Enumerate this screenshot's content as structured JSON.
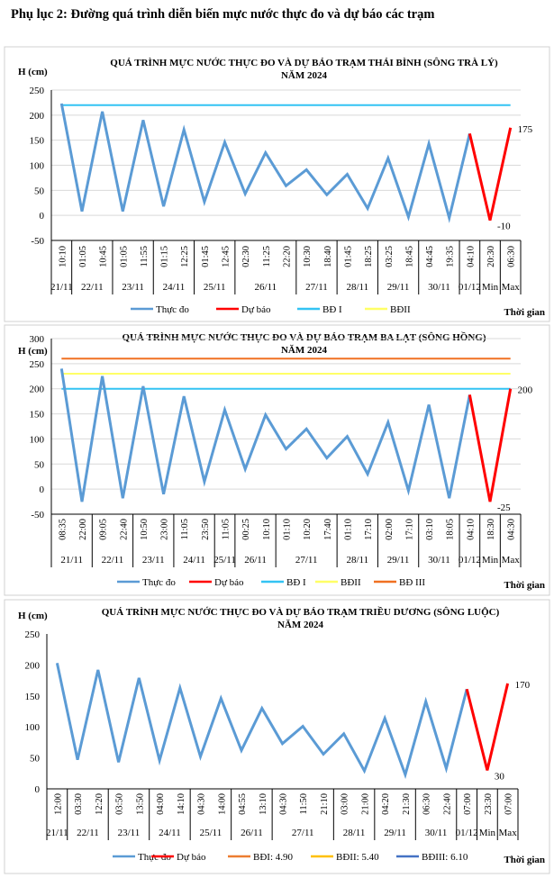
{
  "heading": "Phụ lục 2: Đường quá trình diễn biến mực nước thực đo và dự báo các trạm",
  "chart_data": [
    {
      "type": "line",
      "title": [
        "QUÁ TRÌNH MỰC NƯỚC THỰC ĐO VÀ DỰ BÁO TRẠM THÁI BÌNH (SÔNG TRÀ LÝ)",
        "NĂM 2024"
      ],
      "ylabel": "H (cm)",
      "xlabel": "Thời gian",
      "ylim": [
        -50,
        250
      ],
      "yticks": [
        -50,
        0,
        50,
        100,
        150,
        200,
        250
      ],
      "grid": true,
      "legend_position": "bottom",
      "times": [
        "10:10",
        "01:05",
        "10:45",
        "01:05",
        "11:55",
        "01:15",
        "12:25",
        "01:45",
        "12:45",
        "02:30",
        "11:25",
        "22:20",
        "10:30",
        "18:40",
        "01:45",
        "18:25",
        "03:25",
        "18:45",
        "04:45",
        "19:35",
        "04:10",
        "20:30",
        "06:30"
      ],
      "date_groups": [
        {
          "label": "21/11",
          "span": 1
        },
        {
          "label": "22/11",
          "span": 2
        },
        {
          "label": "23/11",
          "span": 2
        },
        {
          "label": "24/11",
          "span": 2
        },
        {
          "label": "25/11",
          "span": 2
        },
        {
          "label": "26/11",
          "span": 3
        },
        {
          "label": "27/11",
          "span": 2
        },
        {
          "label": "28/11",
          "span": 2
        },
        {
          "label": "29/11",
          "span": 2
        },
        {
          "label": "30/11",
          "span": 2
        },
        {
          "label": "01/12",
          "span": 1
        },
        {
          "label": "Min",
          "span": 1
        },
        {
          "label": "Max",
          "span": 1
        }
      ],
      "series": [
        {
          "name": "Thực đo",
          "color": "#5b9bd5",
          "start_index": 0,
          "values": [
            223,
            8,
            207,
            8,
            190,
            18,
            171,
            27,
            146,
            43,
            125,
            59,
            91,
            41,
            82,
            14,
            114,
            -3,
            143,
            -5,
            163
          ]
        },
        {
          "name": "Dự báo",
          "color": "#ff0000",
          "start_index": 20,
          "values": [
            163,
            -10,
            175
          ]
        }
      ],
      "thresholds": [
        {
          "name": "BĐ I",
          "color": "#33c3f3",
          "value": 220
        },
        {
          "name": "BĐII",
          "color": "#ffff66",
          "value": null
        }
      ],
      "data_labels": {
        "max": "175",
        "min": "-10"
      }
    },
    {
      "type": "line",
      "title": [
        "QUÁ TRÌNH MỰC NƯỚC THỰC ĐO VÀ DỰ BÁO TRẠM BA LẠT (SÔNG HỒNG)",
        "NĂM 2024"
      ],
      "ylabel": "H (cm)",
      "xlabel": "Thời gian",
      "ylim": [
        -50,
        300
      ],
      "yticks": [
        -50,
        0,
        50,
        100,
        150,
        200,
        250,
        300
      ],
      "grid": true,
      "legend_position": "bottom",
      "times": [
        "08:35",
        "22:00",
        "09:05",
        "22:40",
        "10:50",
        "23:00",
        "11:05",
        "23:50",
        "11:05",
        "00:25",
        "10:10",
        "01:10",
        "10:20",
        "17:40",
        "01:10",
        "17:10",
        "02:00",
        "17:10",
        "03:10",
        "18:05",
        "04:10",
        "18:30",
        "04:30"
      ],
      "date_groups": [
        {
          "label": "21/11",
          "span": 2
        },
        {
          "label": "22/11",
          "span": 2
        },
        {
          "label": "23/11",
          "span": 2
        },
        {
          "label": "24/11",
          "span": 2
        },
        {
          "label": "25/11",
          "span": 1
        },
        {
          "label": "26/11",
          "span": 2
        },
        {
          "label": "27/11",
          "span": 3
        },
        {
          "label": "28/11",
          "span": 2
        },
        {
          "label": "29/11",
          "span": 2
        },
        {
          "label": "30/11",
          "span": 2
        },
        {
          "label": "01/12",
          "span": 1
        },
        {
          "label": "Min",
          "span": 1
        },
        {
          "label": "Max",
          "span": 1
        }
      ],
      "series": [
        {
          "name": "Thực đo",
          "color": "#5b9bd5",
          "start_index": 0,
          "values": [
            240,
            -25,
            225,
            -18,
            205,
            -10,
            185,
            15,
            158,
            40,
            148,
            80,
            120,
            62,
            105,
            30,
            133,
            -3,
            168,
            -18,
            188
          ]
        },
        {
          "name": "Dự báo",
          "color": "#ff0000",
          "start_index": 20,
          "values": [
            188,
            -25,
            200
          ]
        }
      ],
      "thresholds": [
        {
          "name": "BĐ I",
          "color": "#33c3f3",
          "value": 200
        },
        {
          "name": "BĐII",
          "color": "#ffff66",
          "value": 230
        },
        {
          "name": "BĐ III",
          "color": "#f07022",
          "value": 260
        }
      ],
      "data_labels": {
        "max": "200",
        "min": "-25"
      }
    },
    {
      "type": "line",
      "title": [
        "QUÁ TRÌNH MỰC NƯỚC THỰC ĐO VÀ DỰ BÁO TRẠM TRIỀU DƯƠNG (SÔNG LUỘC)",
        "NĂM 2024"
      ],
      "ylabel": "H (cm)",
      "xlabel": "Thời gian",
      "ylim": [
        0,
        250
      ],
      "yticks": [
        0,
        50,
        100,
        150,
        200,
        250
      ],
      "grid": false,
      "legend_position": "bottom",
      "times": [
        "12:00",
        "03:30",
        "12:20",
        "03:50",
        "13:50",
        "04:00",
        "14:10",
        "04:30",
        "14:00",
        "04:55",
        "13:10",
        "04:30",
        "11:50",
        "21:10",
        "03:00",
        "21:00",
        "04:20",
        "21:30",
        "06:30",
        "22:40",
        "07:00",
        "23:30",
        "07:00"
      ],
      "date_groups": [
        {
          "label": "21/11",
          "span": 1
        },
        {
          "label": "22/11",
          "span": 2
        },
        {
          "label": "23/11",
          "span": 2
        },
        {
          "label": "24/11",
          "span": 2
        },
        {
          "label": "25/11",
          "span": 2
        },
        {
          "label": "26/11",
          "span": 2
        },
        {
          "label": "27/11",
          "span": 3
        },
        {
          "label": "28/11",
          "span": 2
        },
        {
          "label": "29/11",
          "span": 2
        },
        {
          "label": "30/11",
          "span": 2
        },
        {
          "label": "01/12",
          "span": 1
        },
        {
          "label": "Min",
          "span": 1
        },
        {
          "label": "Max",
          "span": 1
        }
      ],
      "series": [
        {
          "name": "Thực đo",
          "color": "#5b9bd5",
          "start_index": 0,
          "values": [
            203,
            47,
            192,
            43,
            179,
            46,
            163,
            52,
            146,
            62,
            130,
            73,
            101,
            56,
            89,
            29,
            114,
            23,
            141,
            33,
            161
          ]
        },
        {
          "name": "Dự báo",
          "color": "#ff0000",
          "start_index": 20,
          "values": [
            161,
            30,
            170
          ]
        }
      ],
      "thresholds": [
        {
          "name": "BĐI: 4.90",
          "color": "#ed7d31",
          "value": null
        },
        {
          "name": "BĐII: 5.40",
          "color": "#ffc000",
          "value": null
        },
        {
          "name": "BĐIII: 6.10",
          "color": "#4472c4",
          "value": null
        }
      ],
      "data_labels": {
        "max": "170",
        "min": "30"
      }
    }
  ]
}
